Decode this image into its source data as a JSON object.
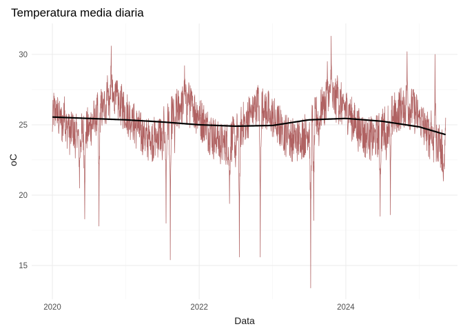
{
  "chart_data": {
    "type": "line",
    "title": "Temperatura media diaria",
    "xlabel": "Data",
    "ylabel": "oC",
    "x_range": [
      "2019-09-20",
      "2025-07-10"
    ],
    "ylim": [
      12.6,
      32.2
    ],
    "x_ticks": [
      {
        "date": "2020-01-01",
        "label": "2020"
      },
      {
        "date": "2022-01-01",
        "label": "2022"
      },
      {
        "date": "2024-01-01",
        "label": "2024"
      }
    ],
    "x_minor_ticks": [
      "2021-01-01",
      "2023-01-01",
      "2025-01-01"
    ],
    "y_ticks": [
      15,
      20,
      25,
      30
    ],
    "y_minor_ticks": [
      17.5,
      22.5,
      27.5
    ],
    "grid": true,
    "legend": "none",
    "series": [
      {
        "style": "daily-line",
        "color": "#b06262",
        "x_start": "2020-01-01",
        "x_end": "2025-05-12",
        "points": [
          [
            "2020-01-01",
            24.5
          ],
          [
            "2020-01-20",
            26.5
          ],
          [
            "2020-02-10",
            25.8
          ],
          [
            "2020-03-01",
            27.0
          ],
          [
            "2020-03-20",
            25.5
          ],
          [
            "2020-04-10",
            25.8
          ],
          [
            "2020-05-05",
            24.5
          ],
          [
            "2020-05-15",
            20.5
          ],
          [
            "2020-06-10",
            18.3
          ],
          [
            "2020-07-01",
            24.5
          ],
          [
            "2020-08-01",
            25.0
          ],
          [
            "2020-08-20",
            17.8
          ],
          [
            "2020-09-10",
            26.5
          ],
          [
            "2020-10-01",
            28.5
          ],
          [
            "2020-10-20",
            30.6
          ],
          [
            "2020-11-10",
            28.0
          ],
          [
            "2020-12-01",
            26.0
          ],
          [
            "2021-01-01",
            25.0
          ],
          [
            "2021-02-01",
            25.6
          ],
          [
            "2021-03-01",
            25.5
          ],
          [
            "2021-04-01",
            24.8
          ],
          [
            "2021-05-01",
            24.5
          ],
          [
            "2021-06-01",
            24.0
          ],
          [
            "2021-07-01",
            22.5
          ],
          [
            "2021-07-20",
            18.0
          ],
          [
            "2021-08-10",
            15.4
          ],
          [
            "2021-09-01",
            23.0
          ],
          [
            "2021-10-01",
            26.5
          ],
          [
            "2021-10-20",
            29.2
          ],
          [
            "2021-11-10",
            28.0
          ],
          [
            "2021-12-01",
            26.5
          ],
          [
            "2022-01-01",
            25.8
          ],
          [
            "2022-02-01",
            25.5
          ],
          [
            "2022-03-01",
            25.5
          ],
          [
            "2022-04-01",
            25.0
          ],
          [
            "2022-05-01",
            24.0
          ],
          [
            "2022-06-01",
            19.4
          ],
          [
            "2022-07-01",
            22.0
          ],
          [
            "2022-07-20",
            15.6
          ],
          [
            "2022-08-20",
            24.0
          ],
          [
            "2022-09-20",
            25.5
          ],
          [
            "2022-10-20",
            27.8
          ],
          [
            "2022-11-01",
            15.6
          ],
          [
            "2022-11-20",
            26.0
          ],
          [
            "2022-12-20",
            25.0
          ],
          [
            "2023-01-20",
            24.5
          ],
          [
            "2023-02-20",
            25.0
          ],
          [
            "2023-03-20",
            25.5
          ],
          [
            "2023-04-20",
            24.5
          ],
          [
            "2023-05-20",
            23.5
          ],
          [
            "2023-06-20",
            24.0
          ],
          [
            "2023-07-10",
            13.4
          ],
          [
            "2023-07-25",
            18.2
          ],
          [
            "2023-08-20",
            23.5
          ],
          [
            "2023-09-10",
            27.0
          ],
          [
            "2023-10-01",
            29.5
          ],
          [
            "2023-10-20",
            31.3
          ],
          [
            "2023-11-20",
            28.5
          ],
          [
            "2023-12-20",
            26.5
          ],
          [
            "2024-01-20",
            26.5
          ],
          [
            "2024-02-20",
            25.5
          ],
          [
            "2024-03-20",
            25.5
          ],
          [
            "2024-04-20",
            24.8
          ],
          [
            "2024-05-20",
            24.0
          ],
          [
            "2024-06-20",
            18.5
          ],
          [
            "2024-07-20",
            22.5
          ],
          [
            "2024-08-10",
            18.6
          ],
          [
            "2024-09-10",
            24.5
          ],
          [
            "2024-10-10",
            26.5
          ],
          [
            "2024-11-01",
            30.2
          ],
          [
            "2024-12-01",
            27.5
          ],
          [
            "2025-01-01",
            25.5
          ],
          [
            "2025-02-01",
            25.0
          ],
          [
            "2025-03-01",
            26.0
          ],
          [
            "2025-03-20",
            30.0
          ],
          [
            "2025-04-10",
            25.0
          ],
          [
            "2025-05-01",
            21.0
          ],
          [
            "2025-05-12",
            25.5
          ]
        ]
      },
      {
        "style": "smooth-trend",
        "color": "#000000",
        "points": [
          [
            "2020-01-01",
            25.55
          ],
          [
            "2020-07-01",
            25.45
          ],
          [
            "2021-01-01",
            25.35
          ],
          [
            "2021-07-01",
            25.2
          ],
          [
            "2022-01-01",
            25.0
          ],
          [
            "2022-07-01",
            24.9
          ],
          [
            "2023-01-01",
            24.95
          ],
          [
            "2023-07-01",
            25.35
          ],
          [
            "2024-01-01",
            25.45
          ],
          [
            "2024-07-01",
            25.25
          ],
          [
            "2025-01-01",
            24.85
          ],
          [
            "2025-05-12",
            24.3
          ]
        ]
      }
    ]
  }
}
